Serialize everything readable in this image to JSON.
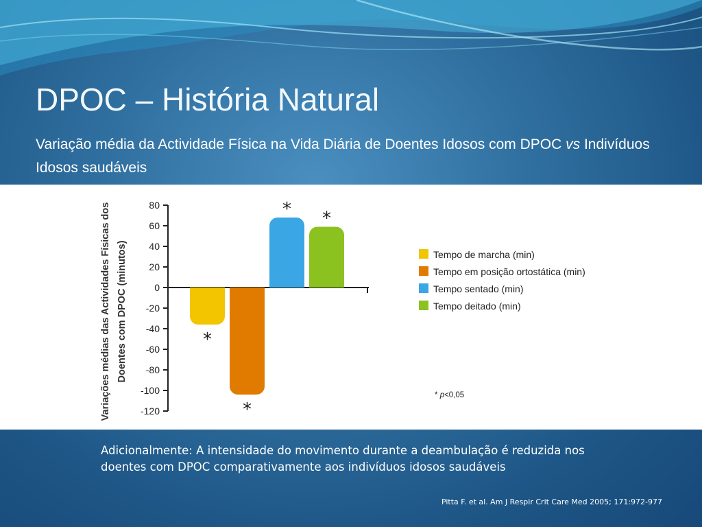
{
  "slide": {
    "title": "DPOC – História Natural",
    "subtitle_part1": "Variação média da Actividade Física na Vida Diária de Doentes Idosos com DPOC ",
    "subtitle_italic": "vs",
    "subtitle_part2": " Indivíduos Idosos saudáveis",
    "note": "Adicionalmente: A intensidade do movimento durante a deambulação é reduzida nos doentes com DPOC comparativamente aos indivíduos idosos saudáveis",
    "reference": "Pitta F. et al. Am J Respir Crit Care Med 2005; 171:972-977"
  },
  "chart_data": {
    "type": "bar",
    "ylabel_line1": "Variações médias das Actividades Físicas dos",
    "ylabel_line2": "Doentes com DPOC (minutos)",
    "ylim": [
      -120,
      80
    ],
    "yticks": [
      80,
      60,
      40,
      20,
      0,
      -20,
      -40,
      -60,
      -80,
      -100,
      -120
    ],
    "grid": false,
    "legend_position": "right",
    "series": [
      {
        "name": "Tempo de marcha (min)",
        "value": -36,
        "color": "#f2c500",
        "significance": "*"
      },
      {
        "name": "Tempo em posição ortostática (min)",
        "value": -104,
        "color": "#e07b00",
        "significance": "*"
      },
      {
        "name": "Tempo sentado (min)",
        "value": 68,
        "color": "#3aa6e3",
        "significance": "*"
      },
      {
        "name": "Tempo deitado (min)",
        "value": 59,
        "color": "#8cc21f",
        "significance": "*"
      }
    ],
    "footnote_star": "*",
    "footnote_p": "p",
    "footnote_value": "<0,05"
  }
}
